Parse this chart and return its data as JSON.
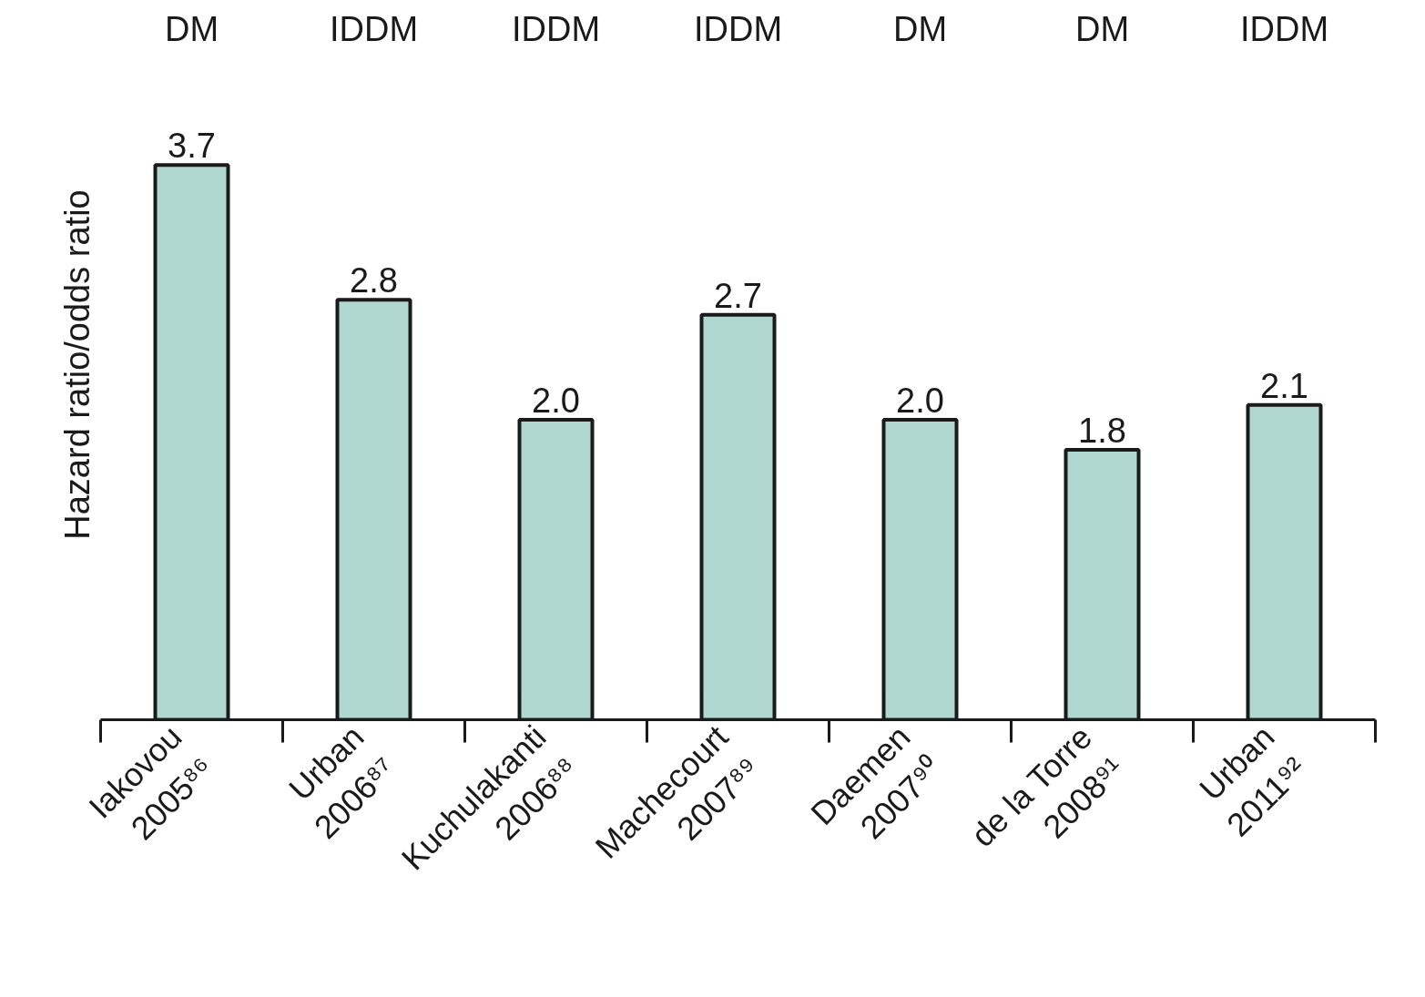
{
  "chart_data": {
    "type": "bar",
    "ylabel": "Hazard ratio/odds ratio",
    "categories": [
      "Iakovou\n2005⁸⁶",
      "Urban\n2006⁸⁷",
      "Kuchulakanti\n2006⁸⁸",
      "Machecourt\n2007⁸⁹",
      "Daemen\n2007⁹⁰",
      "de la Torre\n2008⁹¹",
      "Urban\n2011⁹²"
    ],
    "values": [
      3.7,
      2.8,
      2.0,
      2.7,
      2.0,
      1.8,
      2.1
    ],
    "value_labels": [
      "3.7",
      "2.8",
      "2.0",
      "2.7",
      "2.0",
      "1.8",
      "2.1"
    ],
    "color": "#b0d8d0",
    "grid": false,
    "annotations": [
      "DM",
      "IDDM",
      "IDDM",
      "IDDM",
      "DM",
      "DM",
      "IDDM"
    ]
  }
}
